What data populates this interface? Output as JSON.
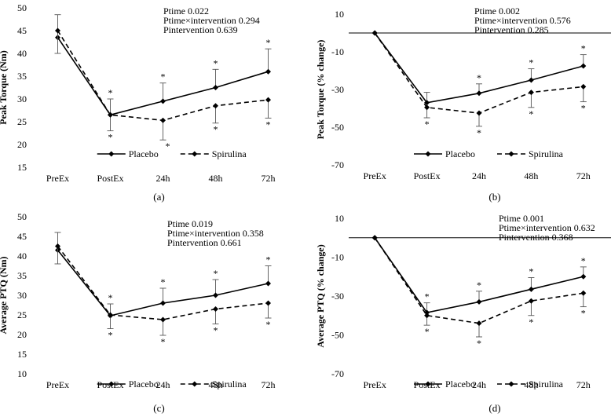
{
  "chart_data": [
    {
      "type": "line",
      "panel_label": "(a)",
      "ylabel": "Peak Torque (Nm)",
      "categories": [
        "PreEx",
        "PostEx",
        "24h",
        "48h",
        "72h"
      ],
      "ylim": [
        15,
        50
      ],
      "yticks": [
        15,
        20,
        25,
        30,
        35,
        40,
        45,
        50
      ],
      "zero_line": false,
      "stats": [
        "Ptime 0.022",
        "Ptime×intervention 0.294",
        "Pintervention 0.639"
      ],
      "legend": [
        "Placebo",
        "Spirulina"
      ],
      "series": [
        {
          "name": "Placebo",
          "style": "solid",
          "values": [
            43.5,
            26.5,
            29.5,
            32.5,
            36.0
          ],
          "err_up": [
            5.0,
            3.5,
            4.0,
            4.0,
            5.0
          ],
          "stars_above": [
            false,
            true,
            true,
            true,
            true
          ]
        },
        {
          "name": "Spirulina",
          "style": "dashed",
          "values": [
            45.0,
            26.5,
            25.3,
            28.5,
            29.8
          ],
          "err_dn": [
            5.0,
            3.5,
            4.3,
            3.8,
            4.0
          ],
          "stars_below": [
            false,
            true,
            true,
            true,
            true
          ]
        }
      ]
    },
    {
      "type": "line",
      "panel_label": "(b)",
      "ylabel": "Peak Torque (% change)",
      "categories": [
        "PreEx",
        "PostEx",
        "24h",
        "48h",
        "72h"
      ],
      "ylim": [
        -70,
        10
      ],
      "yticks": [
        -70,
        -50,
        -30,
        -10,
        10
      ],
      "zero_line": true,
      "stats": [
        "Ptime 0.002",
        "Ptime×intervention 0.576",
        "Pintervention 0.285"
      ],
      "legend": [
        "Placebo",
        "Spirulina"
      ],
      "series": [
        {
          "name": "Placebo",
          "style": "solid",
          "values": [
            0,
            -37.0,
            -32.0,
            -25.0,
            -17.5
          ],
          "err_up": [
            0,
            5.5,
            5.0,
            6.0,
            6.0
          ],
          "stars_above": [
            false,
            false,
            true,
            true,
            true
          ]
        },
        {
          "name": "Spirulina",
          "style": "dashed",
          "values": [
            0,
            -39.5,
            -42.5,
            -31.5,
            -28.5
          ],
          "err_dn": [
            0,
            5.5,
            7.0,
            8.0,
            8.0
          ],
          "stars_below": [
            false,
            true,
            true,
            true,
            true
          ]
        }
      ]
    },
    {
      "type": "line",
      "panel_label": "(c)",
      "ylabel": "Average PTQ (Nm)",
      "categories": [
        "PreEx",
        "PostEx",
        "24h",
        "48h",
        "72h"
      ],
      "ylim": [
        10,
        50
      ],
      "yticks": [
        10,
        15,
        20,
        25,
        30,
        35,
        40,
        45,
        50
      ],
      "zero_line": false,
      "stats": [
        "Ptime 0.019",
        "Ptime×intervention 0.358",
        "Pintervention 0.661"
      ],
      "legend": [
        "Placebo",
        "Spirulina"
      ],
      "series": [
        {
          "name": "Placebo",
          "style": "solid",
          "values": [
            41.5,
            24.8,
            28.0,
            30.0,
            33.0
          ],
          "err_up": [
            4.5,
            3.0,
            3.8,
            4.0,
            4.5
          ],
          "stars_above": [
            false,
            true,
            true,
            true,
            true
          ]
        },
        {
          "name": "Spirulina",
          "style": "dashed",
          "values": [
            42.5,
            25.0,
            23.8,
            26.5,
            28.0
          ],
          "err_dn": [
            4.5,
            3.5,
            4.0,
            3.8,
            3.8
          ],
          "stars_below": [
            false,
            true,
            true,
            true,
            true
          ]
        }
      ]
    },
    {
      "type": "line",
      "panel_label": "(d)",
      "ylabel": "Average PTQ (% change)",
      "categories": [
        "PreEx",
        "PostEx",
        "24h",
        "48h",
        "72h"
      ],
      "ylim": [
        -70,
        10
      ],
      "yticks": [
        -70,
        -50,
        -30,
        -10,
        10
      ],
      "zero_line": true,
      "stats": [
        "Ptime 0.001",
        "Ptime×intervention 0.632",
        "Pintervention 0.368"
      ],
      "legend": [
        "Placebo",
        "Spirulina"
      ],
      "series": [
        {
          "name": "Placebo",
          "style": "solid",
          "values": [
            0,
            -38.5,
            -33.0,
            -26.5,
            -20.0
          ],
          "err_up": [
            0,
            5.0,
            5.5,
            6.0,
            5.0
          ],
          "stars_above": [
            false,
            true,
            true,
            true,
            true
          ]
        },
        {
          "name": "Spirulina",
          "style": "dashed",
          "values": [
            0,
            -40.0,
            -44.0,
            -32.5,
            -28.5
          ],
          "err_dn": [
            0,
            5.0,
            7.0,
            7.5,
            7.0
          ],
          "stars_below": [
            false,
            true,
            true,
            true,
            true
          ]
        }
      ]
    }
  ]
}
